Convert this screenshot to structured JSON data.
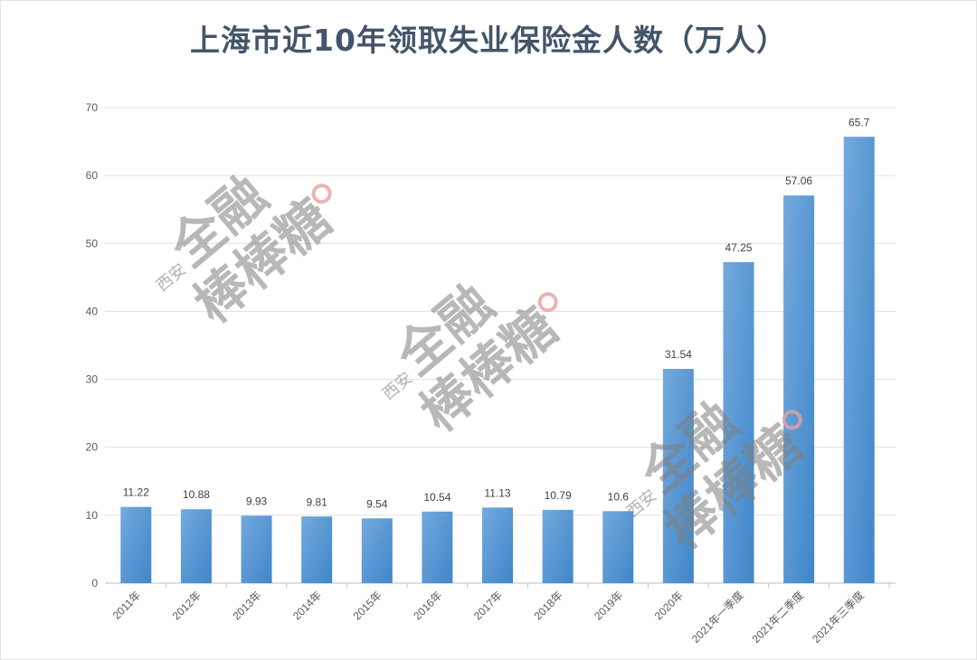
{
  "chart_data": {
    "type": "bar",
    "title": "上海市近10年领取失业保险金人数（万人）",
    "categories": [
      "2011年",
      "2012年",
      "2013年",
      "2014年",
      "2015年",
      "2016年",
      "2017年",
      "2018年",
      "2019年",
      "2020年",
      "2021年一季度",
      "2021年二季度",
      "2021年三季度"
    ],
    "values": [
      11.22,
      10.88,
      9.93,
      9.81,
      9.54,
      10.54,
      11.13,
      10.79,
      10.6,
      31.54,
      47.25,
      57.06,
      65.7
    ],
    "data_labels": [
      "11.22",
      "10.88",
      "9.93",
      "9.81",
      "9.54",
      "10.54",
      "11.13",
      "10.79",
      "10.6",
      "31.54",
      "47.25",
      "57.06",
      "65.7"
    ],
    "xlabel": "",
    "ylabel": "",
    "ylim": [
      0,
      70
    ],
    "yticks": [
      0,
      10,
      20,
      30,
      40,
      50,
      60,
      70
    ],
    "grid": true,
    "legend": "none",
    "bar_color": "#5b9bd5"
  },
  "watermark": "西安 全融 棒棒糖"
}
